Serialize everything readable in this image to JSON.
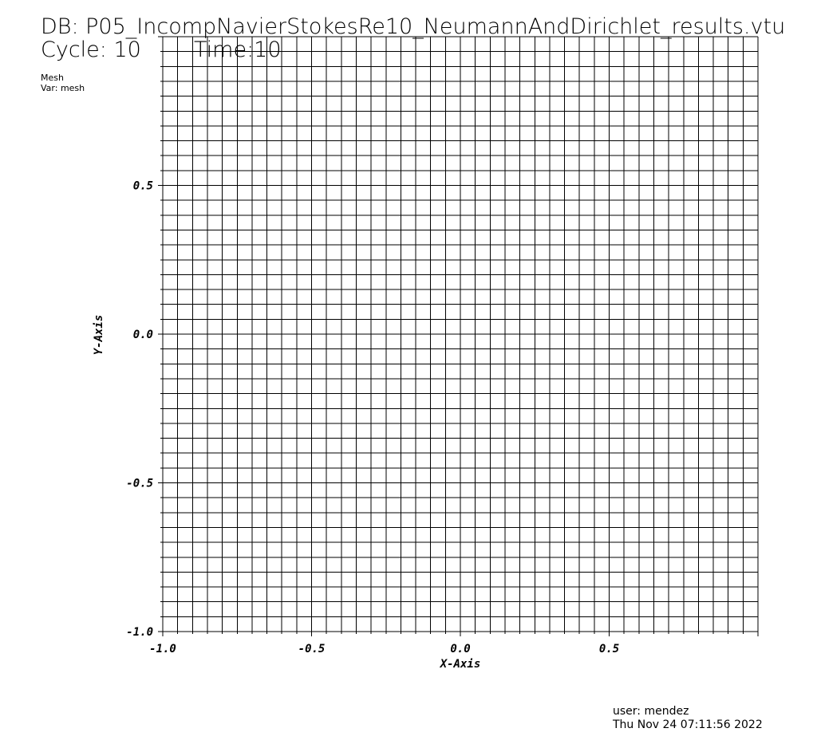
{
  "header": {
    "db": "DB: P05_IncompNavierStokesRe10_NeumannAndDirichlet_results.vtu",
    "cycle": "Cycle: 10",
    "time": "Time:10"
  },
  "plot_info": {
    "name": "Mesh",
    "variable": "Var: mesh"
  },
  "footer": {
    "user": "user: mendez",
    "date": "Thu Nov 24 07:11:56 2022"
  },
  "chart_data": {
    "type": "mesh",
    "xlabel": "X-Axis",
    "ylabel": "Y-Axis",
    "xlim": [
      -1.0,
      1.0
    ],
    "ylim": [
      -1.0,
      1.0
    ],
    "x_ticks": [
      "-1.0",
      "-0.5",
      "0.0",
      "0.5"
    ],
    "y_ticks": [
      "0.5",
      "0.0",
      "-0.5",
      "-1.0"
    ],
    "grid_cells": [
      40,
      40
    ],
    "line_color": "#000000"
  }
}
